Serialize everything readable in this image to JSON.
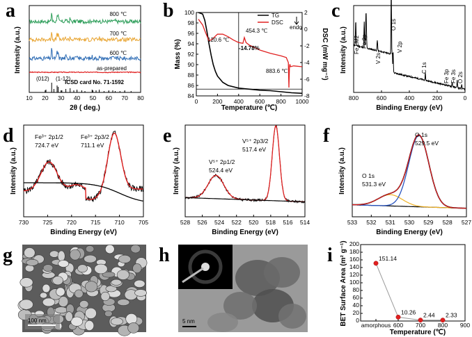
{
  "panels": {
    "a": "a",
    "b": "b",
    "c": "c",
    "d": "d",
    "e": "e",
    "f": "f",
    "g": "g",
    "h": "h",
    "i": "i"
  },
  "chart_data": [
    {
      "id": "a",
      "type": "line",
      "xlabel": "2θ ( deg.)",
      "ylabel": "Intensity (a.u.)",
      "xlim": [
        10,
        80
      ],
      "xticks": [
        10,
        20,
        30,
        40,
        50,
        60,
        70,
        80
      ],
      "series": [
        {
          "name": "800 ℃",
          "color": "#2e9e5a"
        },
        {
          "name": "700 ℃",
          "color": "#e8a32e"
        },
        {
          "name": "600 ℃",
          "color": "#2f6db5"
        },
        {
          "name": "as-prepared",
          "color": "#e02020"
        },
        {
          "name": "ICSD card No. 71-1592",
          "color": "#000000"
        }
      ],
      "peak_labels": [
        "(012)",
        "(1-12)"
      ]
    },
    {
      "id": "b",
      "type": "line",
      "xlabel": "Temperature (℃)",
      "ylabel": "Mass (%)",
      "ylabel2": "DSC (mW mg⁻¹)",
      "xlim": [
        0,
        1000
      ],
      "xticks": [
        0,
        200,
        400,
        600,
        800,
        1000
      ],
      "ylim": [
        84,
        100
      ],
      "yticks": [
        84,
        86,
        88,
        90,
        92,
        94,
        96,
        98,
        100
      ],
      "y2lim": [
        -8,
        2
      ],
      "y2ticks": [
        2,
        0,
        -2,
        -4,
        -6,
        -8
      ],
      "series": [
        {
          "name": "TG",
          "color": "#000000",
          "x": [
            20,
            60,
            80,
            100,
            120,
            140,
            160,
            180,
            200,
            250,
            300,
            400,
            500,
            600,
            700,
            800,
            900,
            1000
          ],
          "y": [
            100,
            99.7,
            98.5,
            96.4,
            94.0,
            91.8,
            90.0,
            88.7,
            87.8,
            86.6,
            86.0,
            85.5,
            85.3,
            85.1,
            85.0,
            84.8,
            84.6,
            84.5
          ]
        },
        {
          "name": "DSC",
          "color": "#e02020",
          "x": [
            20,
            60,
            90,
            120,
            150,
            200,
            250,
            300,
            350,
            400,
            440,
            454,
            470,
            500,
            600,
            700,
            800,
            850,
            870,
            875,
            880,
            884,
            890,
            920,
            1000
          ],
          "y": [
            1.2,
            0.5,
            -0.5,
            -1.4,
            -1.2,
            -0.6,
            -0.6,
            -0.9,
            -1.3,
            -1.6,
            -1.7,
            -1.0,
            -1.6,
            -1.9,
            -2.5,
            -2.9,
            -3.2,
            -3.4,
            -4.0,
            -7.0,
            -4.5,
            -4.2,
            -4.5,
            -4.4,
            -4.5
          ]
        }
      ],
      "annotations": [
        "120.6 ℃",
        "454.3 ℃",
        "-14.78%",
        "883.6 ℃",
        "endo"
      ]
    },
    {
      "id": "c",
      "type": "line",
      "xlabel": "Binding Energy (eV)",
      "ylabel": "Intensity (a.u.)",
      "xlim": [
        800,
        0
      ],
      "xticks": [
        800,
        600,
        400,
        200,
        0
      ],
      "annotations": [
        "Fe LM2",
        "Fe 2p",
        "V 2s",
        "O 1s",
        "V 2p",
        "C 1s",
        "Fe 3p",
        "Fe 3s",
        "O 2s"
      ]
    },
    {
      "id": "d",
      "type": "line",
      "xlabel": "Binding Energy (eV)",
      "ylabel": "Intensity (a.u.)",
      "xlim": [
        730,
        705
      ],
      "xticks": [
        730,
        725,
        720,
        715,
        710,
        705
      ],
      "annotations": [
        {
          "species": "Fe³⁺ 2p1/2",
          "value": "724.7 eV"
        },
        {
          "species": "Fe³⁺ 2p3/2",
          "value": "711.1 eV"
        }
      ]
    },
    {
      "id": "e",
      "type": "line",
      "xlabel": "Binding Energy (eV)",
      "ylabel": "Intensity (a.u.)",
      "xlim": [
        528,
        514
      ],
      "xticks": [
        528,
        526,
        524,
        522,
        520,
        518,
        516,
        514
      ],
      "annotations": [
        {
          "species": "V⁵⁺ 2p1/2",
          "value": "524.4 eV"
        },
        {
          "species": "V⁵⁺ 2p3/2",
          "value": "517.4 eV"
        }
      ]
    },
    {
      "id": "f",
      "type": "line",
      "xlabel": "Binding Energy (eV)",
      "ylabel": "Intensity (a.u.)",
      "xlim": [
        533,
        527
      ],
      "xticks": [
        533,
        532,
        531,
        530,
        529,
        528,
        527
      ],
      "annotations": [
        {
          "species": "O 1s",
          "value": "529.5 eV"
        },
        {
          "species": "O 1s",
          "value": "531.3 eV"
        }
      ]
    },
    {
      "id": "i",
      "type": "scatter",
      "xlabel": "Temperature (℃)",
      "ylabel": "BET Surface Area (m² g⁻¹)",
      "categories": [
        "amorphous",
        "600",
        "700",
        "800",
        "900"
      ],
      "x": [
        "amorphous",
        "600",
        "700",
        "800"
      ],
      "values": [
        151.14,
        10.26,
        2.44,
        2.33
      ],
      "value_labels": [
        "151.14",
        "10.26",
        "2.44",
        "2.33"
      ],
      "ylim": [
        0,
        200
      ],
      "yticks": [
        0,
        20,
        40,
        60,
        80,
        100,
        120,
        140,
        160,
        180,
        200
      ],
      "color": "#e02020"
    }
  ],
  "images": {
    "g_scale": "100 nm",
    "h_scale": "5 nm"
  }
}
